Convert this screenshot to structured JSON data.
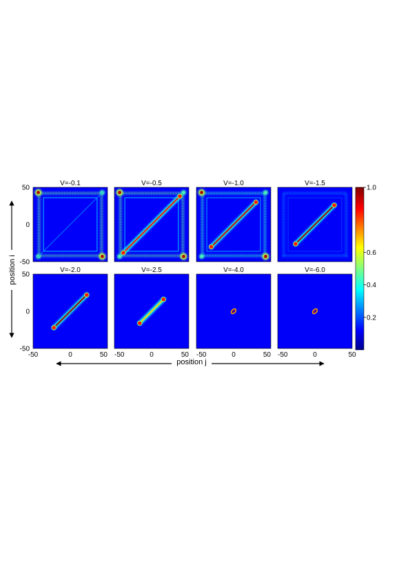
{
  "chart_data": {
    "type": "heatmap",
    "colormap": "jet",
    "panels": [
      {
        "title": "V=-0.1",
        "V": -0.1,
        "corner_peaks": true,
        "diagonal_extent": 0,
        "diagonal_intensity": 0.15,
        "frame_intensity": 0.35
      },
      {
        "title": "V=-0.5",
        "V": -0.5,
        "corner_peaks": true,
        "diagonal_extent": 38,
        "diagonal_intensity": 0.75,
        "frame_intensity": 0.35
      },
      {
        "title": "V=-1.0",
        "V": -1.0,
        "corner_peaks": true,
        "diagonal_extent": 30,
        "diagonal_intensity": 0.8,
        "frame_intensity": 0.3
      },
      {
        "title": "V=-1.5",
        "V": -1.5,
        "corner_peaks": false,
        "diagonal_extent": 26,
        "diagonal_intensity": 0.85,
        "frame_intensity": 0.12
      },
      {
        "title": "V=-2.0",
        "V": -2.0,
        "corner_peaks": false,
        "diagonal_extent": 22,
        "diagonal_intensity": 0.85,
        "frame_intensity": 0.0
      },
      {
        "title": "V=-2.5",
        "V": -2.5,
        "corner_peaks": false,
        "diagonal_extent": 16,
        "diagonal_intensity": 0.55,
        "frame_intensity": 0.0
      },
      {
        "title": "V=-4.0",
        "V": -4.0,
        "corner_peaks": false,
        "diagonal_extent": 4,
        "diagonal_intensity": 0.6,
        "frame_intensity": 0.0
      },
      {
        "title": "V=-6.0",
        "V": -6.0,
        "corner_peaks": false,
        "diagonal_extent": 2,
        "diagonal_intensity": 0.6,
        "frame_intensity": 0.0
      }
    ],
    "xlabel": "position j",
    "ylabel": "position i",
    "xlim": [
      -50,
      50
    ],
    "ylim": [
      -50,
      50
    ],
    "x_ticks": [
      "-50",
      "0",
      "50"
    ],
    "y_ticks": [
      "50",
      "0",
      "-50"
    ],
    "colorbar": {
      "ticks": [
        "1.0",
        "0.6",
        "0.4",
        "0.2"
      ],
      "tick_values": [
        1.0,
        0.6,
        0.4,
        0.2
      ],
      "range": [
        0,
        1
      ]
    }
  }
}
